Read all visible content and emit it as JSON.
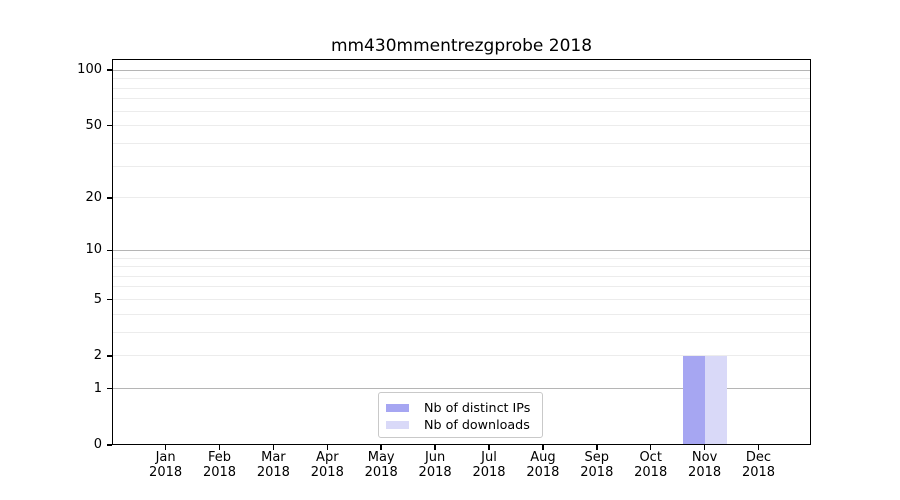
{
  "chart_data": {
    "type": "bar",
    "title": "mm430mmentrezgprobe 2018",
    "categories": [
      "Jan 2018",
      "Feb 2018",
      "Mar 2018",
      "Apr 2018",
      "May 2018",
      "Jun 2018",
      "Jul 2018",
      "Aug 2018",
      "Sep 2018",
      "Oct 2018",
      "Nov 2018",
      "Dec 2018"
    ],
    "series": [
      {
        "name": "Nb of distinct IPs",
        "color": "#a6a6f2",
        "values": [
          0,
          0,
          0,
          0,
          0,
          0,
          0,
          0,
          0,
          0,
          2,
          0
        ]
      },
      {
        "name": "Nb of downloads",
        "color": "#d9d9f8",
        "values": [
          0,
          0,
          0,
          0,
          0,
          0,
          0,
          0,
          0,
          0,
          2,
          0
        ]
      }
    ],
    "xlabel": "",
    "ylabel": "",
    "y_scale": "log1p",
    "ylim": [
      0,
      115
    ],
    "y_ticks": [
      100,
      50,
      20,
      10,
      5,
      2,
      1,
      0
    ],
    "y_major_grid": [
      1,
      10,
      100
    ],
    "y_minor_grid": [
      2,
      3,
      4,
      5,
      6,
      7,
      8,
      9,
      20,
      30,
      40,
      50,
      60,
      70,
      80,
      90
    ],
    "grid": true,
    "legend_position": "lower center",
    "colors": {
      "axis": "#000000",
      "tick_label": "#000000",
      "grid_major": "#b5b5b5",
      "grid_minor": "#ececec",
      "background": "#ffffff"
    }
  }
}
